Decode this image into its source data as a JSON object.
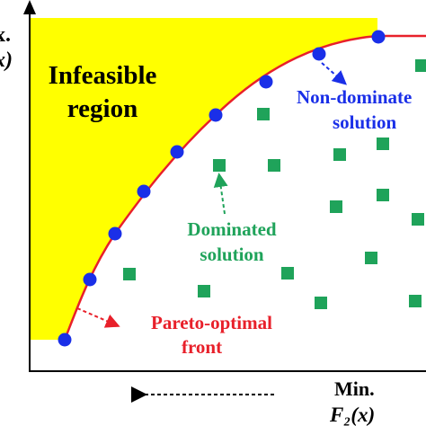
{
  "colors": {
    "infeasible_fill": "#ffff00",
    "front_curve": "#e8202a",
    "non_dominated_point": "#1a2fe8",
    "dominated_point": "#1fa35a",
    "pareto_label": "#e8202a",
    "non_dominated_label": "#1a2fe8",
    "dominated_label": "#1fa35a",
    "axis": "#000000"
  },
  "axis_labels": {
    "y_line1": "x.",
    "y_line2": "x)",
    "x_line1": "Min.",
    "x_line2": "F₂(x)"
  },
  "region_label": {
    "line1": "Infeasible",
    "line2": "region"
  },
  "non_dominated_label": {
    "line1": "Non-dominate",
    "line2": "solution"
  },
  "dominated_label": {
    "line1": "Dominated",
    "line2": "solution"
  },
  "pareto_label": {
    "line1": "Pareto-optimal",
    "line2": "front"
  }
}
